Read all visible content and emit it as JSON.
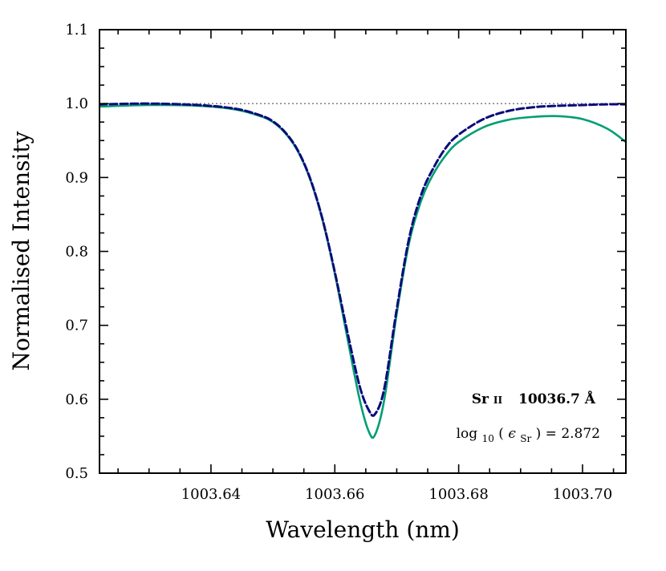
{
  "chart_data": {
    "type": "line",
    "xlabel": "Wavelength (nm)",
    "ylabel": "Normalised Intensity",
    "xlim": [
      1003.622,
      1003.707
    ],
    "ylim": [
      0.5,
      1.1
    ],
    "xticks": [
      1003.64,
      1003.66,
      1003.68,
      1003.7
    ],
    "xtick_labels": [
      "1003.64",
      "1003.66",
      "1003.68",
      "1003.70"
    ],
    "yticks": [
      0.5,
      0.6,
      0.7,
      0.8,
      0.9,
      1.0,
      1.1
    ],
    "ytick_labels": [
      "0.5",
      "0.6",
      "0.7",
      "0.8",
      "0.9",
      "1.0",
      "1.1"
    ],
    "grid": false,
    "annotations": {
      "line_species": "Sr",
      "line_ion": "II",
      "line_wavelength": "10036.7 Å",
      "abundance_prefix": "log",
      "abundance_sub": "10",
      "abundance_eps": "ϵ",
      "abundance_eps_sub": "Sr",
      "abundance_value": "2.872"
    },
    "reference_line": {
      "y": 1.0,
      "style": "dotted",
      "color": "#888888"
    },
    "series": [
      {
        "color": "#009E73",
        "style": "solid",
        "x": [
          1003.622,
          1003.63,
          1003.638,
          1003.644,
          1003.648,
          1003.65,
          1003.652,
          1003.654,
          1003.656,
          1003.658,
          1003.66,
          1003.662,
          1003.664,
          1003.6655,
          1003.6665,
          1003.668,
          1003.67,
          1003.672,
          1003.674,
          1003.676,
          1003.678,
          1003.68,
          1003.684,
          1003.688,
          1003.692,
          1003.696,
          1003.7,
          1003.704,
          1003.707
        ],
        "y": [
          0.996,
          0.998,
          0.997,
          0.992,
          0.983,
          0.975,
          0.96,
          0.936,
          0.898,
          0.843,
          0.77,
          0.684,
          0.6,
          0.556,
          0.552,
          0.6,
          0.716,
          0.812,
          0.87,
          0.906,
          0.931,
          0.948,
          0.968,
          0.978,
          0.982,
          0.983,
          0.979,
          0.966,
          0.948
        ]
      },
      {
        "color": "#0B0B7A",
        "style": "dashed",
        "x": [
          1003.622,
          1003.63,
          1003.638,
          1003.644,
          1003.648,
          1003.65,
          1003.652,
          1003.654,
          1003.656,
          1003.658,
          1003.66,
          1003.662,
          1003.664,
          1003.6655,
          1003.6665,
          1003.668,
          1003.67,
          1003.672,
          1003.674,
          1003.676,
          1003.678,
          1003.68,
          1003.684,
          1003.688,
          1003.692,
          1003.696,
          1003.7,
          1003.704,
          1003.707
        ],
        "y": [
          0.999,
          1.0,
          0.998,
          0.993,
          0.984,
          0.976,
          0.961,
          0.937,
          0.899,
          0.844,
          0.772,
          0.692,
          0.618,
          0.585,
          0.58,
          0.615,
          0.722,
          0.818,
          0.878,
          0.914,
          0.941,
          0.958,
          0.979,
          0.99,
          0.995,
          0.997,
          0.998,
          0.999,
          0.999
        ]
      }
    ]
  }
}
